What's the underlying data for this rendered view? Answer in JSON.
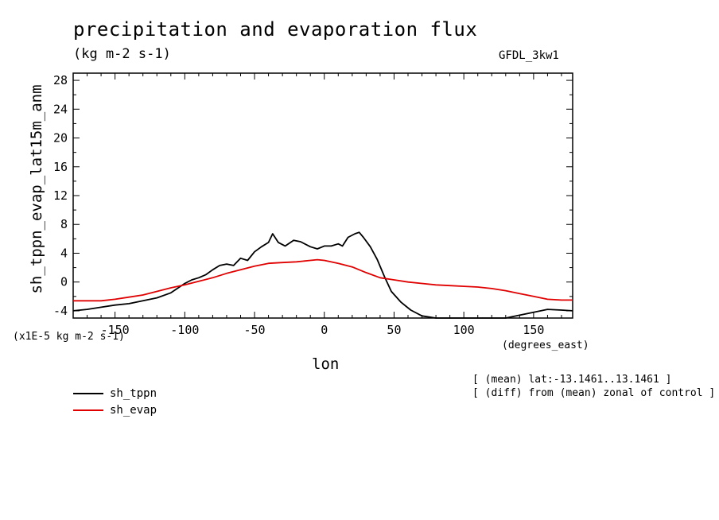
{
  "header": {
    "title": "precipitation and evaporation flux",
    "subtitle": "(kg m-2 s-1)",
    "model": "GFDL_3kw1"
  },
  "annotations": {
    "y_units": "(x1E-5 kg m-2 s-1)",
    "x_units": "(degrees_east)",
    "mean_note": "[ (mean) lat:-13.1461..13.1461 ]",
    "diff_note": "[ (diff) from (mean) zonal of control ]"
  },
  "colors": {
    "sh_tppn": "#000000",
    "sh_evap": "#e00000",
    "axis": "#000000"
  },
  "chart_data": {
    "type": "line",
    "title": "precipitation and evaporation flux",
    "xlabel": "lon",
    "ylabel": "sh_tppn_evap_lat15m_anm",
    "xlim": [
      -180,
      178
    ],
    "ylim": [
      -5,
      29
    ],
    "x_ticks": [
      -150,
      -100,
      -50,
      0,
      50,
      100,
      150
    ],
    "x_tick_labels": [
      "-150",
      "-100",
      "-50",
      "0",
      "50",
      "100",
      "150"
    ],
    "y_ticks": [
      -4,
      0,
      4,
      8,
      12,
      16,
      20,
      24,
      28
    ],
    "y_tick_labels": [
      "-4",
      "0",
      "4",
      "8",
      "12",
      "16",
      "20",
      "24",
      "28"
    ],
    "legend_position": "bottom-left, below plot",
    "grid": false,
    "series": [
      {
        "name": "sh_tppn",
        "color": "#000000",
        "points": [
          [
            -180,
            -4.0
          ],
          [
            -170,
            -3.8
          ],
          [
            -160,
            -3.5
          ],
          [
            -150,
            -3.2
          ],
          [
            -140,
            -3.0
          ],
          [
            -130,
            -2.6
          ],
          [
            -120,
            -2.2
          ],
          [
            -110,
            -1.5
          ],
          [
            -100,
            -0.2
          ],
          [
            -95,
            0.3
          ],
          [
            -90,
            0.6
          ],
          [
            -85,
            1.0
          ],
          [
            -80,
            1.7
          ],
          [
            -75,
            2.3
          ],
          [
            -70,
            2.5
          ],
          [
            -65,
            2.3
          ],
          [
            -60,
            3.3
          ],
          [
            -55,
            3.0
          ],
          [
            -50,
            4.2
          ],
          [
            -45,
            4.9
          ],
          [
            -40,
            5.5
          ],
          [
            -37,
            6.7
          ],
          [
            -33,
            5.5
          ],
          [
            -28,
            5.0
          ],
          [
            -22,
            5.8
          ],
          [
            -17,
            5.6
          ],
          [
            -10,
            4.9
          ],
          [
            -5,
            4.6
          ],
          [
            0,
            5.0
          ],
          [
            5,
            5.0
          ],
          [
            10,
            5.3
          ],
          [
            13,
            5.0
          ],
          [
            17,
            6.2
          ],
          [
            22,
            6.7
          ],
          [
            25,
            6.9
          ],
          [
            28,
            6.2
          ],
          [
            33,
            4.9
          ],
          [
            38,
            3.1
          ],
          [
            43,
            0.8
          ],
          [
            48,
            -1.3
          ],
          [
            55,
            -2.8
          ],
          [
            62,
            -3.9
          ],
          [
            70,
            -4.7
          ],
          [
            80,
            -5.2
          ],
          [
            90,
            -5.5
          ],
          [
            100,
            -5.6
          ],
          [
            110,
            -5.6
          ],
          [
            120,
            -5.4
          ],
          [
            130,
            -5.0
          ],
          [
            140,
            -4.6
          ],
          [
            150,
            -4.2
          ],
          [
            160,
            -3.8
          ],
          [
            170,
            -3.9
          ],
          [
            178,
            -4.0
          ]
        ]
      },
      {
        "name": "sh_evap",
        "color": "#e00000",
        "points": [
          [
            -180,
            -2.6
          ],
          [
            -160,
            -2.6
          ],
          [
            -150,
            -2.4
          ],
          [
            -140,
            -2.1
          ],
          [
            -130,
            -1.8
          ],
          [
            -120,
            -1.3
          ],
          [
            -110,
            -0.8
          ],
          [
            -100,
            -0.4
          ],
          [
            -90,
            0.1
          ],
          [
            -80,
            0.6
          ],
          [
            -70,
            1.2
          ],
          [
            -60,
            1.7
          ],
          [
            -50,
            2.2
          ],
          [
            -40,
            2.6
          ],
          [
            -30,
            2.7
          ],
          [
            -20,
            2.8
          ],
          [
            -10,
            3.0
          ],
          [
            -5,
            3.1
          ],
          [
            0,
            3.0
          ],
          [
            10,
            2.6
          ],
          [
            20,
            2.1
          ],
          [
            30,
            1.3
          ],
          [
            40,
            0.6
          ],
          [
            50,
            0.3
          ],
          [
            60,
            0.0
          ],
          [
            70,
            -0.2
          ],
          [
            80,
            -0.4
          ],
          [
            90,
            -0.5
          ],
          [
            100,
            -0.6
          ],
          [
            110,
            -0.7
          ],
          [
            120,
            -0.9
          ],
          [
            130,
            -1.2
          ],
          [
            140,
            -1.6
          ],
          [
            150,
            -2.0
          ],
          [
            160,
            -2.4
          ],
          [
            170,
            -2.5
          ],
          [
            178,
            -2.5
          ]
        ]
      }
    ]
  }
}
